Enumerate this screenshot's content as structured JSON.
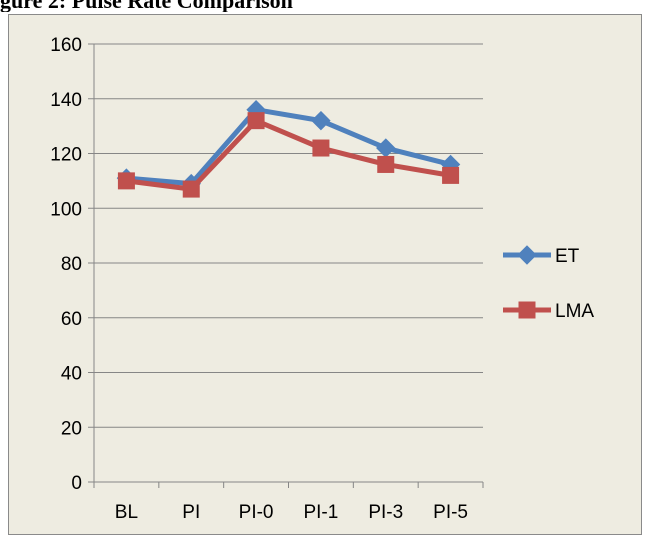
{
  "caption": "gure 2: Pulse Rate Comparison",
  "chart_data": {
    "type": "line",
    "categories": [
      "BL",
      "PI",
      "PI-0",
      "PI-1",
      "PI-3",
      "PI-5"
    ],
    "series": [
      {
        "name": "ET",
        "values": [
          111,
          109,
          136,
          132,
          122,
          116
        ],
        "color": "#4f81bd",
        "marker": "diamond"
      },
      {
        "name": "LMA",
        "values": [
          110,
          107,
          132,
          122,
          116,
          112
        ],
        "color": "#c0504d",
        "marker": "square"
      }
    ],
    "ylim": [
      0,
      160
    ],
    "yticks": [
      0,
      20,
      40,
      60,
      80,
      100,
      120,
      140,
      160
    ],
    "grid": true,
    "legend": "right",
    "title": "",
    "xlabel": "",
    "ylabel": ""
  }
}
